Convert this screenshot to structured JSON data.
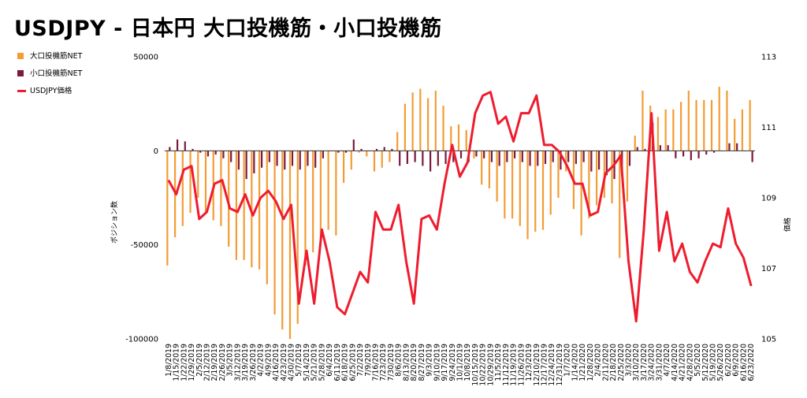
{
  "title": "USDJPY - 日本円 大口投機筋・小口投機筋",
  "colors": {
    "large": "#f39c33",
    "small": "#7b1a3f",
    "price": "#ee1c2e",
    "grid": "#000000"
  },
  "chart_data": {
    "type": "bar",
    "ylabel": "ポジション数",
    "y2label": "価格",
    "ylim": [
      -100000,
      50000
    ],
    "y2lim": [
      105,
      113
    ],
    "yticks": [
      "50000",
      "0",
      "-50000",
      "-100000"
    ],
    "y2ticks": [
      "113",
      "111",
      "109",
      "107",
      "105"
    ],
    "legend": [
      "大口投機筋NET",
      "小口投機筋NET",
      "USDJPY価格"
    ],
    "categories": [
      "1/8/2019",
      "1/15/2019",
      "1/22/2019",
      "1/29/2019",
      "2/5/2019",
      "2/12/2019",
      "2/19/2019",
      "2/26/2019",
      "3/5/2019",
      "3/12/2019",
      "3/19/2019",
      "3/26/2019",
      "4/2/2019",
      "4/9/2019",
      "4/16/2019",
      "4/23/2019",
      "4/30/2019",
      "5/7/2019",
      "5/14/2019",
      "5/21/2019",
      "5/28/2019",
      "6/4/2019",
      "6/11/2019",
      "6/18/2019",
      "6/25/2019",
      "7/2/2019",
      "7/9/2019",
      "7/16/2019",
      "7/23/2019",
      "7/30/2019",
      "8/6/2019",
      "8/13/2019",
      "8/20/2019",
      "8/27/2019",
      "9/3/2019",
      "9/10/2019",
      "9/17/2019",
      "9/24/2019",
      "10/1/2019",
      "10/8/2019",
      "10/15/2019",
      "10/22/2019",
      "10/29/2019",
      "11/5/2019",
      "11/12/2019",
      "11/19/2019",
      "11/26/2019",
      "12/3/2019",
      "12/10/2019",
      "12/17/2019",
      "12/24/2019",
      "12/31/2019",
      "1/7/2020",
      "1/14/2020",
      "1/21/2020",
      "1/28/2020",
      "2/4/2020",
      "2/11/2020",
      "2/18/2020",
      "2/25/2020",
      "3/3/2020",
      "3/10/2020",
      "3/17/2020",
      "3/24/2020",
      "3/31/2020",
      "4/7/2020",
      "4/14/2020",
      "4/21/2020",
      "4/28/2020",
      "5/5/2020",
      "5/12/2020",
      "5/19/2020",
      "5/26/2020",
      "6/2/2020",
      "6/9/2020",
      "6/16/2020",
      "6/23/2020"
    ],
    "xticks": [
      "1/8/2019",
      "1/15/2019",
      "1/22/2019",
      "1/29/2019",
      "2/5/2019",
      "2/12/2019",
      "2/19/2019",
      "2/26/2019",
      "3/5/2019",
      "3/12/2019",
      "3/19/2019",
      "3/26/2019",
      "4/2/2019",
      "4/9/2019",
      "4/16/2019",
      "4/23/2019",
      "4/30/2019",
      "5/7/2019",
      "5/14/2019",
      "5/21/2019",
      "5/28/2019",
      "6/4/2019",
      "6/11/2019",
      "6/18/2019",
      "6/25/2019",
      "7/2/2019",
      "7/9/2019",
      "7/16/2019",
      "7/23/2019",
      "7/30/2019",
      "8/6/2019",
      "8/13/2019",
      "8/20/2019",
      "8/27/2019",
      "9/3/2019",
      "9/10/2019",
      "9/17/2019",
      "9/24/2019",
      "10/1/2019",
      "10/8/2019",
      "10/15/2019",
      "10/22/2019",
      "10/29/2019",
      "11/5/2019",
      "11/12/2019",
      "11/19/2019",
      "11/26/2019",
      "12/3/2019",
      "12/10/2019",
      "12/17/2019",
      "12/24/2019",
      "12/31/2019",
      "1/7/2020",
      "1/14/2020",
      "1/21/2020",
      "1/28/2020",
      "2/4/2020",
      "2/11/2020",
      "2/18/2020",
      "2/25/2020",
      "3/3/2020",
      "3/10/2020",
      "3/17/2020",
      "3/24/2020",
      "3/31/2020",
      "4/7/2020",
      "4/14/2020",
      "4/21/2020",
      "4/28/2020",
      "5/5/2020",
      "5/12/2020",
      "5/19/2020",
      "5/26/2020",
      "6/2/2020",
      "6/9/2020",
      "6/16/2020",
      "6/23/2020"
    ],
    "series": [
      {
        "name": "大口投機筋NET",
        "type": "bar",
        "axis": "left",
        "values": [
          -61000,
          -46000,
          -40000,
          -33000,
          -25000,
          -33000,
          -37000,
          -40000,
          -51000,
          -58000,
          -58000,
          -62000,
          -63000,
          -71000,
          -87000,
          -95000,
          -100000,
          -92000,
          -61000,
          -54000,
          -50000,
          -42000,
          -45000,
          -17000,
          -10000,
          -1000,
          -3000,
          -11000,
          -9000,
          -6000,
          10000,
          25000,
          31000,
          33000,
          28000,
          32000,
          24000,
          13000,
          14000,
          11000,
          -4000,
          -18000,
          -20000,
          -27000,
          -36000,
          -36000,
          -40000,
          -47000,
          -43000,
          -42000,
          -34000,
          -25000,
          -11000,
          -31000,
          -45000,
          -36000,
          -29000,
          -25000,
          -28000,
          -57000,
          -27000,
          8000,
          32000,
          24000,
          18000,
          22000,
          22000,
          26000,
          32000,
          27000,
          27000,
          27000,
          34000,
          32000,
          17000,
          22000,
          27000
        ]
      },
      {
        "name": "小口投機筋NET",
        "type": "bar",
        "axis": "left",
        "values": [
          2000,
          6000,
          5000,
          1000,
          -1000,
          -3000,
          -2000,
          -4000,
          -6000,
          -10000,
          -15000,
          -12000,
          -9000,
          -6000,
          -8000,
          -10000,
          -8000,
          -10000,
          -8000,
          -9000,
          -4000,
          0,
          -1000,
          -1000,
          6000,
          1000,
          0,
          1000,
          2000,
          1000,
          -8000,
          -7000,
          -6000,
          -8000,
          -11000,
          -8000,
          -7000,
          -6000,
          -4000,
          -6000,
          -3000,
          -4000,
          -6000,
          -8000,
          -6000,
          -4000,
          -6000,
          -8000,
          -8000,
          -7000,
          -6000,
          -10000,
          -6000,
          -7000,
          -6000,
          -11000,
          -10000,
          -13000,
          -15000,
          -12000,
          -8000,
          2000,
          1000,
          15000,
          3000,
          3000,
          -4000,
          -3000,
          -5000,
          -4000,
          -2000,
          -1000,
          0,
          4000,
          4000,
          0,
          -6000
        ]
      },
      {
        "name": "USDJPY価格",
        "type": "line",
        "axis": "right",
        "values": [
          109.5,
          109.1,
          109.8,
          109.9,
          108.4,
          108.6,
          109.4,
          109.5,
          108.7,
          108.6,
          109.1,
          108.5,
          109.0,
          109.2,
          108.9,
          108.4,
          108.8,
          106.0,
          107.5,
          106.0,
          108.1,
          107.2,
          105.9,
          105.7,
          106.3,
          106.9,
          106.6,
          108.6,
          108.1,
          108.1,
          108.8,
          107.2,
          106.0,
          108.4,
          108.5,
          108.1,
          109.4,
          110.5,
          109.6,
          110.0,
          111.4,
          111.9,
          112.0,
          111.1,
          111.3,
          110.6,
          111.4,
          111.4,
          111.9,
          110.5,
          110.5,
          110.3,
          109.9,
          109.4,
          109.4,
          108.5,
          108.6,
          109.7,
          109.9,
          110.2,
          107.2,
          105.5,
          108.1,
          111.4,
          107.5,
          108.6,
          107.2,
          107.7,
          106.9,
          106.6,
          107.2,
          107.7,
          107.6,
          108.7,
          107.7,
          107.3,
          106.5
        ]
      }
    ]
  }
}
